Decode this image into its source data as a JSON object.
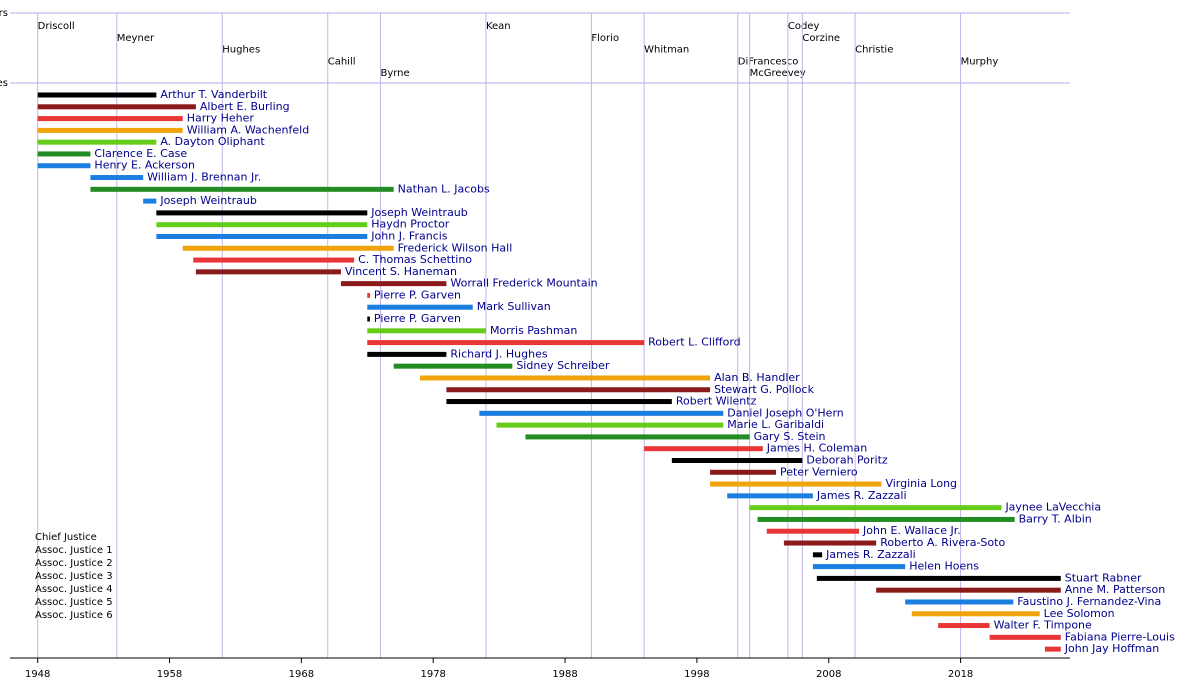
{
  "chart_data": {
    "type": "timeline",
    "xlim": [
      1945.9,
      2026.3
    ],
    "xticks": [
      1948,
      1958,
      1968,
      1978,
      1988,
      1998,
      2008,
      2018
    ],
    "row_titles": [
      "Governors",
      "Justices"
    ],
    "governors": [
      {
        "name": "Driscoll",
        "start": 1948
      },
      {
        "name": "Meyner",
        "start": 1954
      },
      {
        "name": "Hughes",
        "start": 1962
      },
      {
        "name": "Cahill",
        "start": 1970
      },
      {
        "name": "Byrne",
        "start": 1974
      },
      {
        "name": "Kean",
        "start": 1982
      },
      {
        "name": "Florio",
        "start": 1990
      },
      {
        "name": "Whitman",
        "start": 1994
      },
      {
        "name": "DiFrancesco",
        "start": 2001.1
      },
      {
        "name": "McGreevey",
        "start": 2002
      },
      {
        "name": "Codey",
        "start": 2004.9
      },
      {
        "name": "Corzine",
        "start": 2006
      },
      {
        "name": "Christie",
        "start": 2010
      },
      {
        "name": "Murphy",
        "start": 2018
      }
    ],
    "seats": [
      {
        "name": "Chief Justice",
        "color": "#000000"
      },
      {
        "name": "Assoc. Justice 1",
        "color": "#8b1a1a"
      },
      {
        "name": "Assoc. Justice 2",
        "color": "#e83535"
      },
      {
        "name": "Assoc. Justice 3",
        "color": "#f0a30a"
      },
      {
        "name": "Assoc. Justice 4",
        "color": "#66cc1a"
      },
      {
        "name": "Assoc. Justice 5",
        "color": "#228b22"
      },
      {
        "name": "Assoc. Justice 6",
        "color": "#1a7fe0"
      }
    ],
    "justices": [
      {
        "name": "Arthur T. Vanderbilt",
        "start": 1948,
        "end": 1957,
        "color": "#000000"
      },
      {
        "name": "Albert E. Burling",
        "start": 1948,
        "end": 1960,
        "color": "#8b1a1a"
      },
      {
        "name": "Harry Heher",
        "start": 1948,
        "end": 1959,
        "color": "#e83535"
      },
      {
        "name": "William A. Wachenfeld",
        "start": 1948,
        "end": 1959,
        "color": "#f0a30a"
      },
      {
        "name": "A. Dayton Oliphant",
        "start": 1948,
        "end": 1957,
        "color": "#66cc1a"
      },
      {
        "name": "Clarence E. Case",
        "start": 1948,
        "end": 1952,
        "color": "#228b22"
      },
      {
        "name": "Henry E. Ackerson",
        "start": 1948,
        "end": 1952,
        "color": "#1a7fe0"
      },
      {
        "name": "William J. Brennan Jr.",
        "start": 1952,
        "end": 1956,
        "color": "#1a7fe0"
      },
      {
        "name": "Nathan L. Jacobs",
        "start": 1952,
        "end": 1975,
        "color": "#228b22"
      },
      {
        "name": "Joseph Weintraub",
        "start": 1956,
        "end": 1957,
        "color": "#1a7fe0"
      },
      {
        "name": "Joseph Weintraub",
        "start": 1957,
        "end": 1973,
        "color": "#000000"
      },
      {
        "name": "Haydn Proctor",
        "start": 1957,
        "end": 1973,
        "color": "#66cc1a"
      },
      {
        "name": "John J. Francis",
        "start": 1957,
        "end": 1973,
        "color": "#1a7fe0"
      },
      {
        "name": "Frederick Wilson Hall",
        "start": 1959,
        "end": 1975,
        "color": "#f0a30a"
      },
      {
        "name": "C. Thomas Schettino",
        "start": 1959.8,
        "end": 1972,
        "color": "#e83535"
      },
      {
        "name": "Vincent S. Haneman",
        "start": 1960,
        "end": 1971,
        "color": "#8b1a1a"
      },
      {
        "name": "Worrall Frederick Mountain",
        "start": 1971,
        "end": 1979,
        "color": "#8b1a1a"
      },
      {
        "name": "Pierre P. Garven",
        "start": 1973,
        "end": 1973.2,
        "color": "#e83535"
      },
      {
        "name": "Mark Sullivan",
        "start": 1973,
        "end": 1981,
        "color": "#1a7fe0"
      },
      {
        "name": "Pierre P. Garven",
        "start": 1973,
        "end": 1973.2,
        "color": "#000000"
      },
      {
        "name": "Morris Pashman",
        "start": 1973,
        "end": 1982,
        "color": "#66cc1a"
      },
      {
        "name": "Robert L. Clifford",
        "start": 1973,
        "end": 1994,
        "color": "#e83535"
      },
      {
        "name": "Richard J. Hughes",
        "start": 1973,
        "end": 1979,
        "color": "#000000"
      },
      {
        "name": "Sidney Schreiber",
        "start": 1975,
        "end": 1984,
        "color": "#228b22"
      },
      {
        "name": "Alan B. Handler",
        "start": 1977,
        "end": 1999,
        "color": "#f0a30a"
      },
      {
        "name": "Stewart G. Pollock",
        "start": 1979,
        "end": 1999,
        "color": "#8b1a1a"
      },
      {
        "name": "Robert Wilentz",
        "start": 1979,
        "end": 1996.1,
        "color": "#000000"
      },
      {
        "name": "Daniel Joseph O'Hern",
        "start": 1981.5,
        "end": 2000,
        "color": "#1a7fe0"
      },
      {
        "name": "Marie L. Garibaldi",
        "start": 1982.8,
        "end": 2000,
        "color": "#66cc1a"
      },
      {
        "name": "Gary S. Stein",
        "start": 1985,
        "end": 2002,
        "color": "#228b22"
      },
      {
        "name": "James H. Coleman",
        "start": 1994,
        "end": 2003,
        "color": "#e83535"
      },
      {
        "name": "Deborah Poritz",
        "start": 1996.1,
        "end": 2006,
        "color": "#000000"
      },
      {
        "name": "Peter Verniero",
        "start": 1999,
        "end": 2004,
        "color": "#8b1a1a"
      },
      {
        "name": "Virginia Long",
        "start": 1999,
        "end": 2012,
        "color": "#f0a30a"
      },
      {
        "name": "James R. Zazzali",
        "start": 2000.3,
        "end": 2006.8,
        "color": "#1a7fe0"
      },
      {
        "name": "Jaynee LaVecchia",
        "start": 2002,
        "end": 2021.1,
        "color": "#66cc1a"
      },
      {
        "name": "Barry T. Albin",
        "start": 2002.6,
        "end": 2022.1,
        "color": "#228b22"
      },
      {
        "name": "John E. Wallace Jr.",
        "start": 2003.3,
        "end": 2010.3,
        "color": "#e83535"
      },
      {
        "name": "Roberto A. Rivera-Soto",
        "start": 2004.6,
        "end": 2011.6,
        "color": "#8b1a1a"
      },
      {
        "name": "James R. Zazzali",
        "start": 2006.8,
        "end": 2007.5,
        "color": "#000000"
      },
      {
        "name": "Helen Hoens",
        "start": 2006.8,
        "end": 2013.8,
        "color": "#1a7fe0"
      },
      {
        "name": "Stuart Rabner",
        "start": 2007.1,
        "end": 2025.6,
        "color": "#000000"
      },
      {
        "name": "Anne M. Patterson",
        "start": 2011.6,
        "end": 2025.6,
        "color": "#8b1a1a"
      },
      {
        "name": "Faustino J. Fernandez-Vina",
        "start": 2013.8,
        "end": 2022,
        "color": "#1a7fe0"
      },
      {
        "name": "Lee Solomon",
        "start": 2014.3,
        "end": 2024,
        "color": "#f0a30a"
      },
      {
        "name": "Walter F. Timpone",
        "start": 2016.3,
        "end": 2020.2,
        "color": "#e83535"
      },
      {
        "name": "Fabiana Pierre-Louis",
        "start": 2020.2,
        "end": 2025.6,
        "color": "#e83535"
      },
      {
        "name": "John Jay Hoffman",
        "start": 2024.4,
        "end": 2025.6,
        "color": "#e83535"
      }
    ]
  }
}
